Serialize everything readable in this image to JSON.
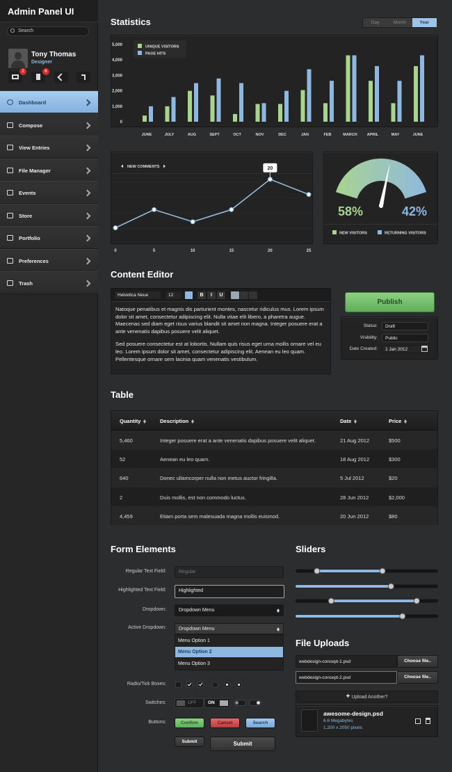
{
  "sidebar": {
    "title": "Admin Panel UI",
    "search_placeholder": "Search",
    "user": {
      "name": "Tony Thomas",
      "role": "Designer"
    },
    "badges": [
      2,
      6
    ],
    "nav": [
      "Dashboard",
      "Compose",
      "View Entries",
      "File Manager",
      "Events",
      "Store",
      "Portfolio",
      "Preferences",
      "Trash"
    ]
  },
  "statistics": {
    "title": "Statistics",
    "tabs": [
      "Day",
      "Month",
      "Year"
    ]
  },
  "chart_data": [
    {
      "type": "bar",
      "categories": [
        "JUNE",
        "JULY",
        "AUG",
        "SEPT",
        "OCT",
        "NOV",
        "DEC",
        "JAN",
        "FEB",
        "MARCH",
        "APRIL",
        "MAY",
        "JUNE"
      ],
      "series": [
        {
          "name": "UNIQUE VISITORS",
          "color": "#a9d48f",
          "values": [
            400,
            1000,
            2000,
            1700,
            500,
            1150,
            1150,
            2050,
            1200,
            4300,
            2650,
            1200,
            3600
          ]
        },
        {
          "name": "PAGE HITS",
          "color": "#8fb8e0",
          "values": [
            1000,
            1600,
            2500,
            2800,
            2500,
            1200,
            2000,
            3400,
            2650,
            4300,
            3600,
            2650,
            4300
          ]
        }
      ],
      "ylim": [
        0,
        5000
      ],
      "yticks": [
        0,
        {
          "value": 1000,
          "label": "1,000"
        },
        {
          "value": 2000,
          "label": "2,000"
        },
        {
          "value": 3000,
          "label": "3,000"
        },
        {
          "value": 4000,
          "label": "4,000"
        },
        {
          "value": 5000,
          "label": "5,000"
        }
      ],
      "legend": "upper-left"
    },
    {
      "type": "line",
      "title": "NEW COMMENTS",
      "x": [
        0,
        5,
        10,
        15,
        20,
        25
      ],
      "values": [
        4,
        10,
        6,
        10,
        20,
        15
      ],
      "color": "#9cc3e6",
      "xlim": [
        0,
        25
      ],
      "xticks": [
        0,
        5,
        10,
        15,
        20,
        25
      ],
      "ylim": [
        0,
        25
      ]
    },
    {
      "type": "gauge",
      "categories": [
        "NEW VISITORS",
        "RETURNING VISITORS"
      ],
      "values": [
        58,
        42
      ],
      "value_labels": [
        "58%",
        "42%"
      ],
      "colors": [
        "#a9d48f",
        "#8fb8e0"
      ]
    }
  ],
  "content_editor": {
    "title": "Content Editor",
    "font": "Helvetica Neue",
    "font_size": 12,
    "format_buttons": [
      "B",
      "I",
      "U"
    ],
    "paragraphs": [
      "Natoque penatibus et magnis dis parturient montes, nascetur ridiculus mus. Lorem ipsum dolor sit amet, consectetur adipiscing elit. Nulla vitae elit libero, a pharetra augue. Maecenas sed diam eget risus varius blandit sit amet non magna. Integer posuere erat a ante venenatis dapibus posuere velit aliquet.",
      "Sed posuere consectetur est at lobortis. Nullam quis risus eget urna mollis ornare vel eu leo. Lorem ipsum dolor sit amet, consectetur adipiscing elit. Aenean eu leo quam. Pellentesque ornare sem lacinia quam venenatis vestibulum."
    ],
    "publish": "Publish",
    "fields": [
      {
        "label": "Status:",
        "value": "Draft"
      },
      {
        "label": "Visibility:",
        "value": "Public"
      },
      {
        "label": "Date Created:",
        "value": "1 Jan 2012"
      }
    ]
  },
  "table": {
    "title": "Table",
    "columns": [
      "Quantity",
      "Description",
      "Date",
      "Price"
    ],
    "rows": [
      [
        "5,460",
        "Integer posuere erat a ante venenatis dapibus posuere velit aliquet.",
        "21 Aug 2012",
        "$500"
      ],
      [
        "52",
        "Aenean eu leo quam.",
        "18 Aug 2012",
        "$300"
      ],
      [
        "640",
        "Donec ullamcorper nulla non metus auctor fringilla.",
        "5 Jul 2012",
        "$20"
      ],
      [
        "2",
        "Duis mollis, est non commodo luctus.",
        "28 Jun 2012",
        "$2,000"
      ],
      [
        "4,459",
        "Etiam porta sem malesuada magna mollis euismod.",
        "20 Jun 2012",
        "$80"
      ]
    ]
  },
  "form": {
    "title": "Form Elements",
    "labels": [
      "Regular Text Field:",
      "Highlighted Text Field:",
      "Dropdown:",
      "Active Dropdown:",
      "Radio/Tick Boxes:",
      "Switches:",
      "Buttons:"
    ],
    "regular_placeholder": "Regular",
    "highlighted_value": "Highlighted",
    "dropdown": "Dropdown Menu",
    "active_dropdown": "Dropdown Menu",
    "menu_options": [
      "Menu Option 1",
      "Menu Option 2",
      "Menu Option 3"
    ],
    "switch_off": "OFF",
    "switch_on": "ON",
    "buttons": [
      "Confirm",
      "Cancel",
      "Search",
      "Submit",
      "Submit"
    ]
  },
  "sliders": {
    "title": "Sliders",
    "range": [
      0,
      100
    ],
    "items": [
      [
        15,
        61
      ],
      [
        67
      ],
      [
        25,
        85
      ],
      [
        75
      ]
    ]
  },
  "file_uploads": {
    "title": "File Uploads",
    "inputs": [
      {
        "file": "webdesign-concept-1.psd",
        "button": "Choose file.."
      },
      {
        "file": "webdesign-concept-2.psd",
        "button": "Choose file.."
      }
    ],
    "upload_another": "Upload Another?",
    "file": {
      "name": "awesome-design.psd",
      "size": "6.6 Megabytes",
      "dimensions": "1,200 x 2050 pixels"
    }
  }
}
